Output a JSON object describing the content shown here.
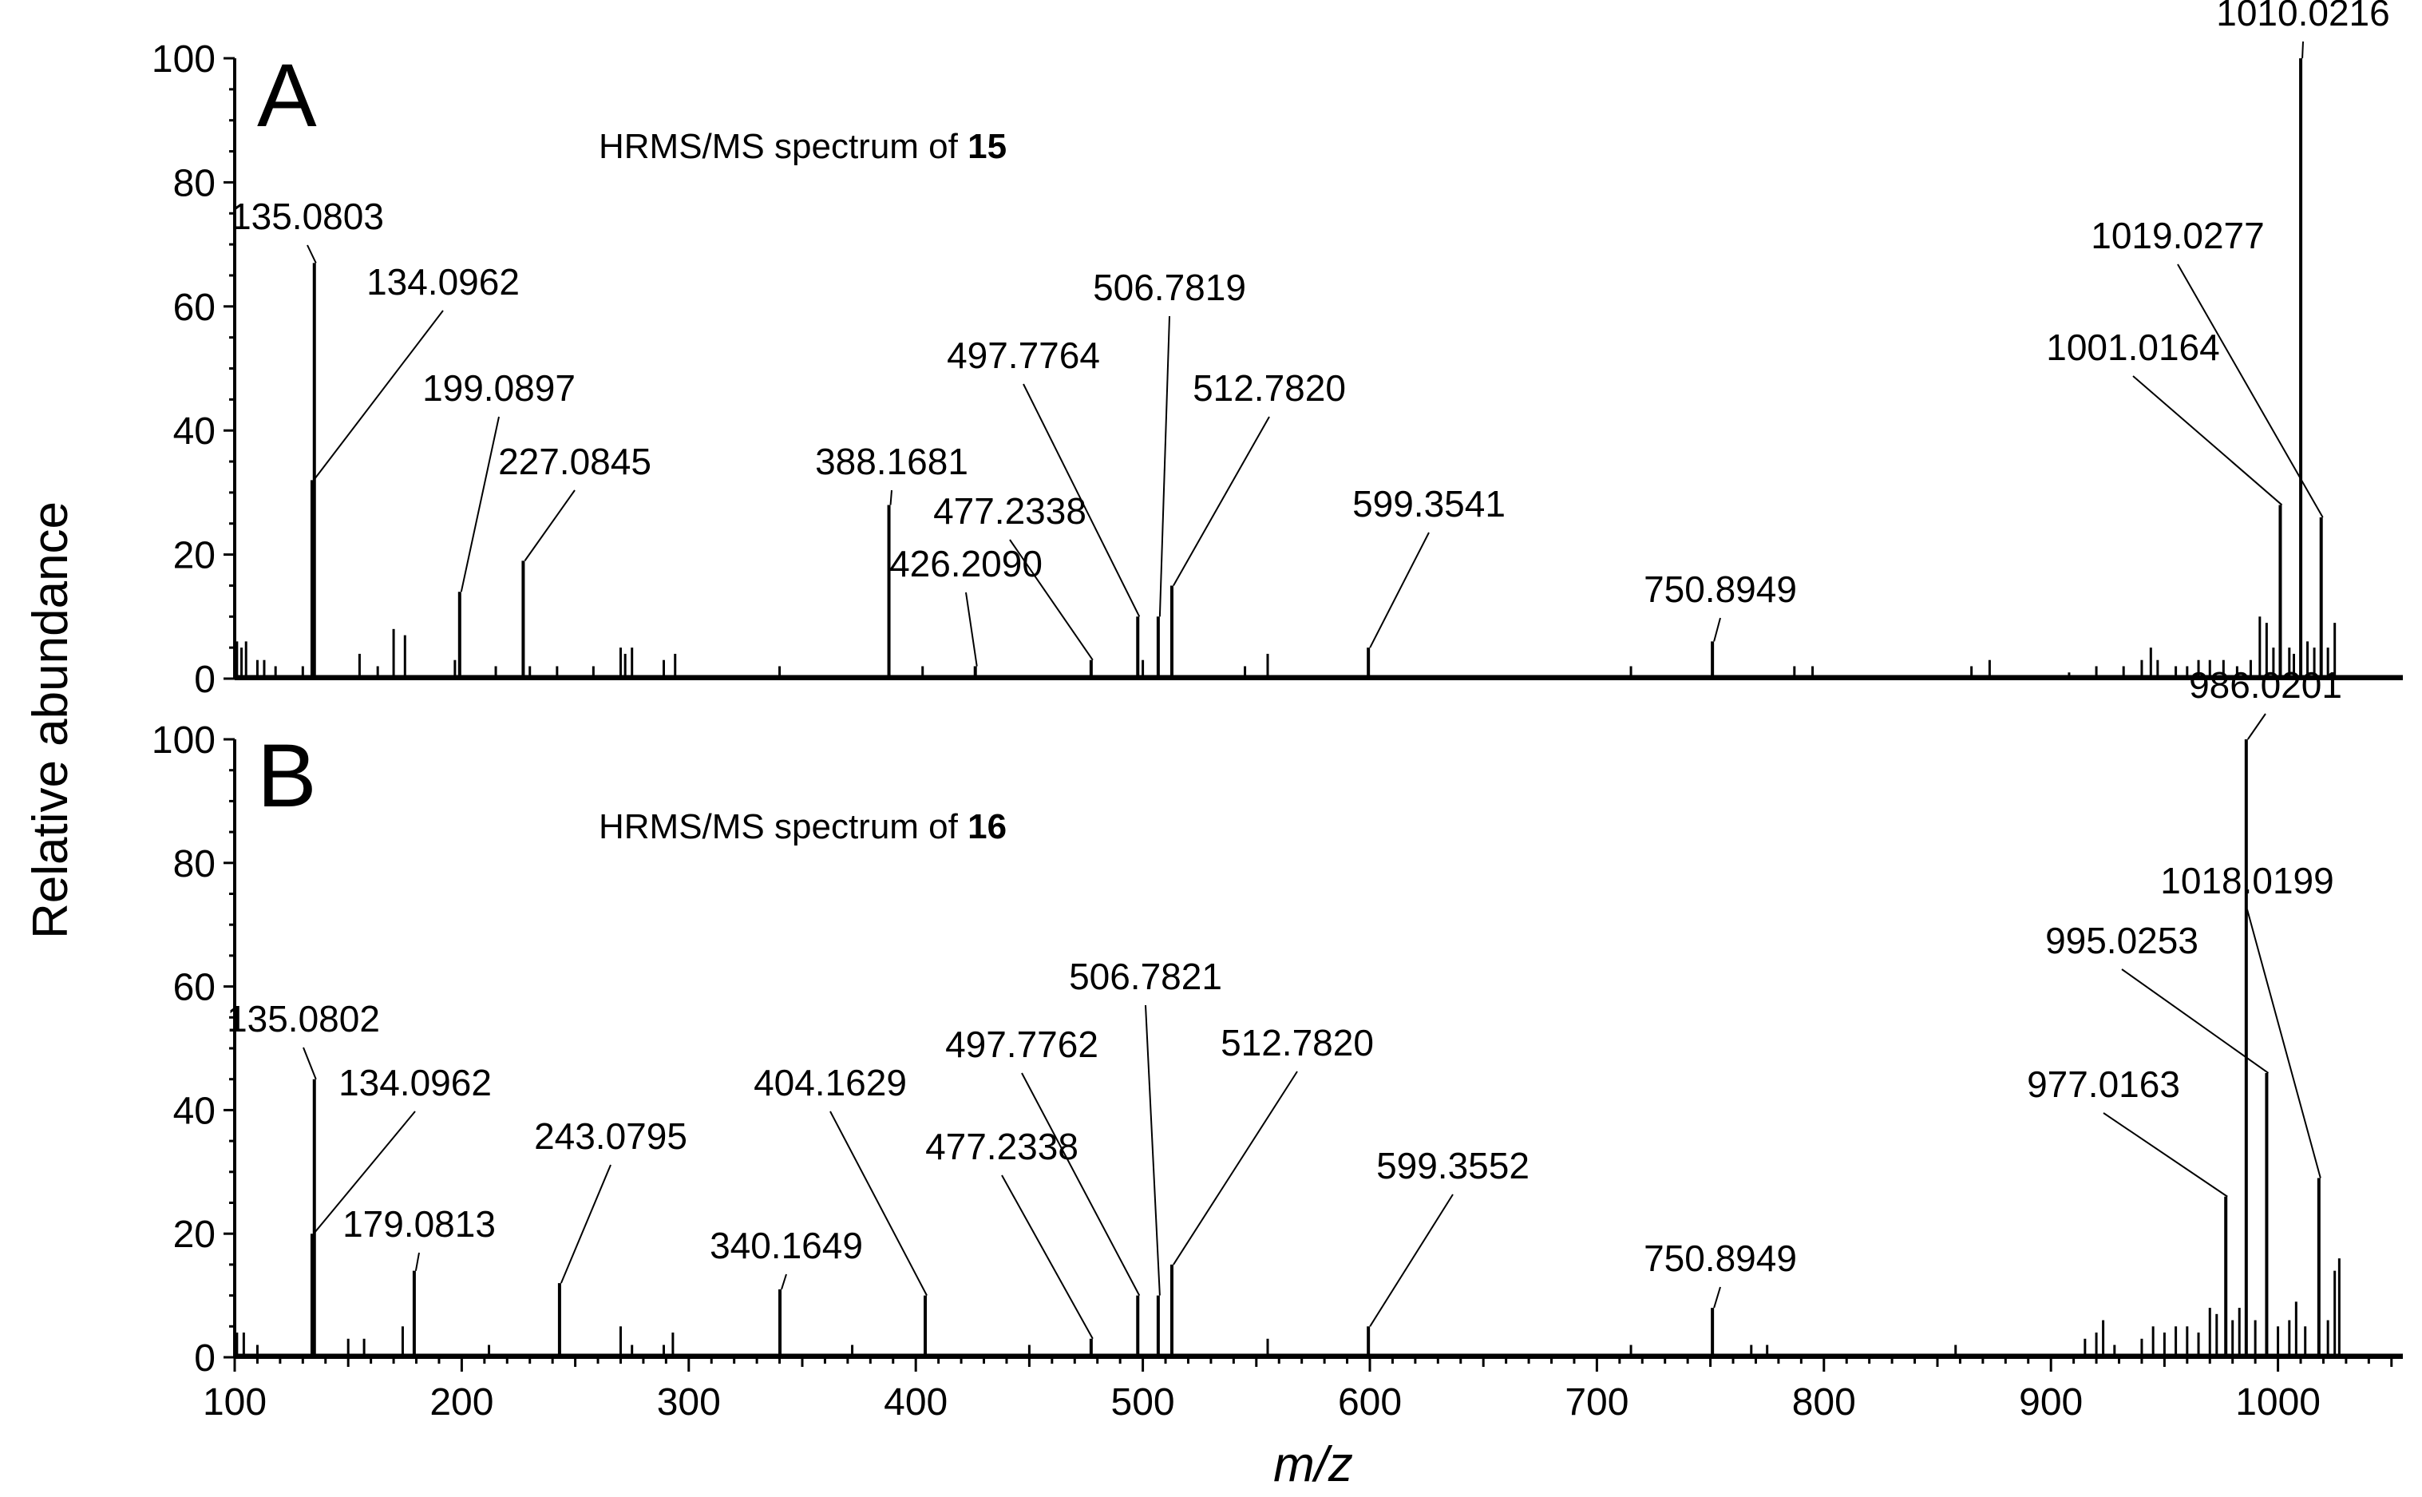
{
  "chart_data": {
    "type": "bar",
    "ylabel": "Relative abundance",
    "xlabel": "m/z",
    "xlim": [
      100,
      1055
    ],
    "ylim": [
      0,
      100
    ],
    "x_ticks": [
      100,
      200,
      300,
      400,
      500,
      600,
      700,
      800,
      900,
      1000
    ],
    "y_ticks": [
      0,
      20,
      40,
      60,
      80,
      100
    ],
    "grid": false,
    "panels": [
      {
        "id": "A",
        "letter": "A",
        "subtitle_prefix": "HRMS/MS spectrum of ",
        "compound": "15",
        "annotated_peaks": [
          {
            "x": 134.0962,
            "y": 32,
            "label": "134.0962"
          },
          {
            "x": 135.0803,
            "y": 67,
            "label": "135.0803"
          },
          {
            "x": 199.0897,
            "y": 14,
            "label": "199.0897"
          },
          {
            "x": 227.0845,
            "y": 19,
            "label": "227.0845"
          },
          {
            "x": 388.1681,
            "y": 28,
            "label": "388.1681"
          },
          {
            "x": 426.209,
            "y": 2,
            "label": "426.2090"
          },
          {
            "x": 477.2338,
            "y": 3,
            "label": "477.2338"
          },
          {
            "x": 497.7764,
            "y": 10,
            "label": "497.7764"
          },
          {
            "x": 506.7819,
            "y": 10,
            "label": "506.7819"
          },
          {
            "x": 512.782,
            "y": 15,
            "label": "512.7820"
          },
          {
            "x": 599.3541,
            "y": 5,
            "label": "599.3541"
          },
          {
            "x": 750.8949,
            "y": 6,
            "label": "750.8949"
          },
          {
            "x": 1001.0164,
            "y": 28,
            "label": "1001.0164"
          },
          {
            "x": 1010.0216,
            "y": 100,
            "label": "1010.0216"
          },
          {
            "x": 1019.0277,
            "y": 26,
            "label": "1019.0277"
          }
        ],
        "minor_peaks": [
          {
            "x": 101,
            "y": 6
          },
          {
            "x": 103,
            "y": 5
          },
          {
            "x": 105,
            "y": 6
          },
          {
            "x": 110,
            "y": 3
          },
          {
            "x": 113,
            "y": 3
          },
          {
            "x": 118,
            "y": 2
          },
          {
            "x": 130,
            "y": 2
          },
          {
            "x": 155,
            "y": 4
          },
          {
            "x": 163,
            "y": 2
          },
          {
            "x": 170,
            "y": 8
          },
          {
            "x": 175,
            "y": 7
          },
          {
            "x": 197,
            "y": 3
          },
          {
            "x": 215,
            "y": 2
          },
          {
            "x": 230,
            "y": 2
          },
          {
            "x": 242,
            "y": 2
          },
          {
            "x": 258,
            "y": 2
          },
          {
            "x": 270,
            "y": 5
          },
          {
            "x": 272,
            "y": 4
          },
          {
            "x": 275,
            "y": 5
          },
          {
            "x": 289,
            "y": 3
          },
          {
            "x": 294,
            "y": 4
          },
          {
            "x": 340,
            "y": 2
          },
          {
            "x": 403,
            "y": 2
          },
          {
            "x": 500,
            "y": 3
          },
          {
            "x": 545,
            "y": 2
          },
          {
            "x": 555,
            "y": 4
          },
          {
            "x": 715,
            "y": 2
          },
          {
            "x": 787,
            "y": 2
          },
          {
            "x": 795,
            "y": 2
          },
          {
            "x": 865,
            "y": 2
          },
          {
            "x": 873,
            "y": 3
          },
          {
            "x": 908,
            "y": 1
          },
          {
            "x": 920,
            "y": 2
          },
          {
            "x": 932,
            "y": 2
          },
          {
            "x": 940,
            "y": 3
          },
          {
            "x": 944,
            "y": 5
          },
          {
            "x": 947,
            "y": 3
          },
          {
            "x": 955,
            "y": 2
          },
          {
            "x": 960,
            "y": 2
          },
          {
            "x": 965,
            "y": 3
          },
          {
            "x": 970,
            "y": 3
          },
          {
            "x": 976,
            "y": 3
          },
          {
            "x": 982,
            "y": 2
          },
          {
            "x": 988,
            "y": 3
          },
          {
            "x": 992,
            "y": 10
          },
          {
            "x": 995,
            "y": 9
          },
          {
            "x": 998,
            "y": 5
          },
          {
            "x": 1005,
            "y": 5
          },
          {
            "x": 1007,
            "y": 4
          },
          {
            "x": 1013,
            "y": 6
          },
          {
            "x": 1016,
            "y": 5
          },
          {
            "x": 1022,
            "y": 5
          },
          {
            "x": 1025,
            "y": 9
          }
        ]
      },
      {
        "id": "B",
        "letter": "B",
        "subtitle_prefix": "HRMS/MS spectrum of ",
        "compound": "16",
        "annotated_peaks": [
          {
            "x": 134.0962,
            "y": 20,
            "label": "134.0962"
          },
          {
            "x": 135.0802,
            "y": 45,
            "label": "135.0802"
          },
          {
            "x": 179.0813,
            "y": 14,
            "label": "179.0813"
          },
          {
            "x": 243.0795,
            "y": 12,
            "label": "243.0795"
          },
          {
            "x": 340.1649,
            "y": 11,
            "label": "340.1649"
          },
          {
            "x": 404.1629,
            "y": 10,
            "label": "404.1629"
          },
          {
            "x": 477.2338,
            "y": 3,
            "label": "477.2338"
          },
          {
            "x": 497.7762,
            "y": 10,
            "label": "497.7762"
          },
          {
            "x": 506.7821,
            "y": 10,
            "label": "506.7821"
          },
          {
            "x": 512.782,
            "y": 15,
            "label": "512.7820"
          },
          {
            "x": 599.3552,
            "y": 5,
            "label": "599.3552"
          },
          {
            "x": 750.8949,
            "y": 8,
            "label": "750.8949"
          },
          {
            "x": 977.0163,
            "y": 26,
            "label": "977.0163"
          },
          {
            "x": 986.0201,
            "y": 100,
            "label": "986.0201"
          },
          {
            "x": 995.0253,
            "y": 46,
            "label": "995.0253"
          },
          {
            "x": 1018.0199,
            "y": 29,
            "label": "1018.0199"
          }
        ],
        "minor_peaks": [
          {
            "x": 101,
            "y": 4
          },
          {
            "x": 104,
            "y": 4
          },
          {
            "x": 110,
            "y": 2
          },
          {
            "x": 150,
            "y": 3
          },
          {
            "x": 157,
            "y": 3
          },
          {
            "x": 174,
            "y": 5
          },
          {
            "x": 212,
            "y": 2
          },
          {
            "x": 270,
            "y": 5
          },
          {
            "x": 275,
            "y": 2
          },
          {
            "x": 289,
            "y": 2
          },
          {
            "x": 293,
            "y": 4
          },
          {
            "x": 372,
            "y": 2
          },
          {
            "x": 450,
            "y": 2
          },
          {
            "x": 555,
            "y": 3
          },
          {
            "x": 715,
            "y": 2
          },
          {
            "x": 768,
            "y": 2
          },
          {
            "x": 775,
            "y": 2
          },
          {
            "x": 858,
            "y": 2
          },
          {
            "x": 915,
            "y": 3
          },
          {
            "x": 920,
            "y": 4
          },
          {
            "x": 923,
            "y": 6
          },
          {
            "x": 928,
            "y": 2
          },
          {
            "x": 940,
            "y": 3
          },
          {
            "x": 945,
            "y": 5
          },
          {
            "x": 950,
            "y": 4
          },
          {
            "x": 955,
            "y": 5
          },
          {
            "x": 960,
            "y": 5
          },
          {
            "x": 965,
            "y": 4
          },
          {
            "x": 970,
            "y": 8
          },
          {
            "x": 973,
            "y": 7
          },
          {
            "x": 980,
            "y": 6
          },
          {
            "x": 983,
            "y": 8
          },
          {
            "x": 990,
            "y": 6
          },
          {
            "x": 1000,
            "y": 5
          },
          {
            "x": 1005,
            "y": 6
          },
          {
            "x": 1008,
            "y": 9
          },
          {
            "x": 1012,
            "y": 5
          },
          {
            "x": 1022,
            "y": 6
          },
          {
            "x": 1025,
            "y": 14
          },
          {
            "x": 1027,
            "y": 16
          }
        ]
      }
    ]
  }
}
